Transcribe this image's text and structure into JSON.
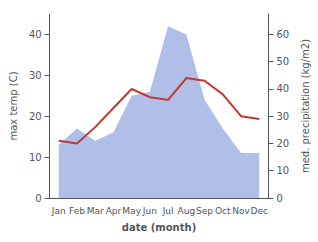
{
  "chart_data": {
    "type": "line",
    "xlabel": "date (month)",
    "ylabel": "max temp (C)",
    "y2label": "med. precipitation (kg/m2)",
    "categories": [
      "Jan",
      "Feb",
      "Mar",
      "Apr",
      "May",
      "Jun",
      "Jul",
      "Aug",
      "Sep",
      "Oct",
      "Nov",
      "Dec"
    ],
    "series": [
      {
        "type": "area",
        "color": "#b0bee8",
        "values": [
          13,
          17,
          14,
          16,
          25,
          26,
          42,
          40,
          24,
          17,
          11,
          11
        ]
      },
      {
        "type": "line",
        "color": "#c0392b",
        "axis": "y2",
        "values": [
          21,
          20,
          26,
          33,
          40,
          37,
          36,
          44,
          43,
          38,
          30,
          29
        ]
      }
    ],
    "ylim": [
      0,
      45
    ],
    "yticks": [
      0,
      10,
      20,
      30,
      40
    ],
    "y2lim": [
      0,
      67.5
    ],
    "y2ticks": [
      0,
      10,
      20,
      30,
      40,
      50,
      60
    ],
    "grid": false
  }
}
